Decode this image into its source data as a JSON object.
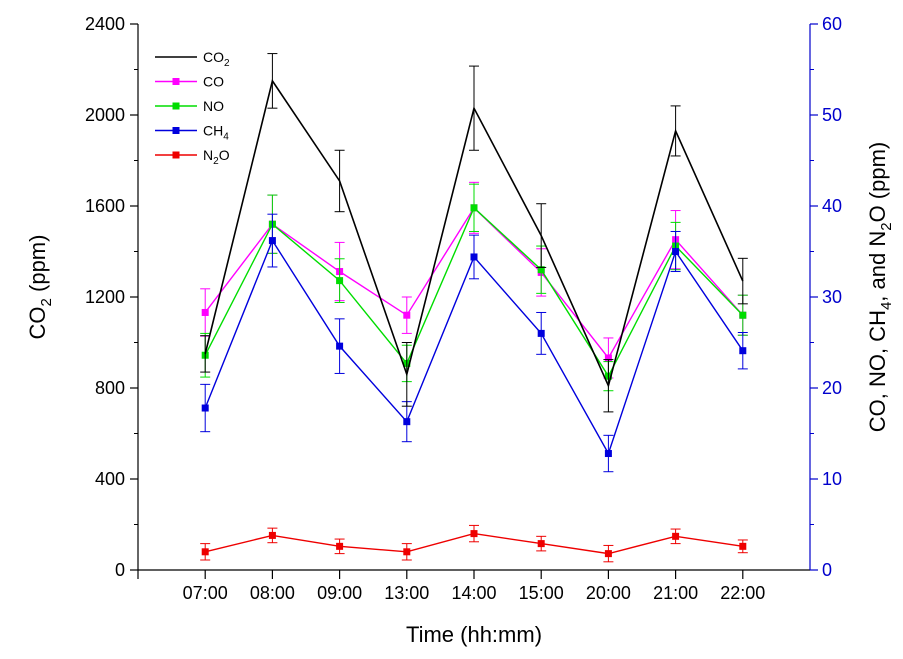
{
  "chart_data": {
    "type": "line",
    "categories": [
      "07:00",
      "08:00",
      "09:00",
      "13:00",
      "14:00",
      "15:00",
      "20:00",
      "21:00",
      "22:00"
    ],
    "xlabel": "Time (hh:mm)",
    "ylabel_left": {
      "main": "CO",
      "sub": "2",
      "rest": " (ppm)"
    },
    "ylabel_right": {
      "parts": [
        {
          "t": "CO, NO, CH",
          "sub": false
        },
        {
          "t": "4",
          "sub": true
        },
        {
          "t": ", and N",
          "sub": false
        },
        {
          "t": "2",
          "sub": true
        },
        {
          "t": "O (ppm)",
          "sub": false
        }
      ]
    },
    "ylim_left": [
      0,
      2400
    ],
    "yticks_left": [
      0,
      400,
      800,
      1200,
      1600,
      2000,
      2400
    ],
    "ylim_right": [
      0,
      60
    ],
    "yticks_right": [
      0,
      10,
      20,
      30,
      40,
      50,
      60
    ],
    "grid": false,
    "legend_position": "top-left",
    "series": [
      {
        "name": "CO",
        "name_sub": "2",
        "axis": "left",
        "color": "#000000",
        "marker": false,
        "values": [
          950,
          2150,
          1710,
          860,
          2030,
          1470,
          810,
          1930,
          1270
        ],
        "errors": [
          80,
          120,
          135,
          140,
          185,
          140,
          115,
          110,
          100
        ]
      },
      {
        "name": "CO",
        "name_sub": "",
        "axis": "right",
        "color": "#ff00ff",
        "marker": true,
        "values": [
          28.3,
          38.0,
          32.8,
          28.0,
          39.8,
          32.7,
          23.3,
          36.3,
          28.0
        ],
        "errors": [
          2.6,
          3.2,
          3.2,
          2.0,
          2.8,
          2.6,
          2.2,
          3.2,
          2.2
        ]
      },
      {
        "name": "NO",
        "name_sub": "",
        "axis": "right",
        "color": "#00dd00",
        "marker": true,
        "values": [
          23.6,
          38.0,
          31.8,
          22.7,
          39.8,
          33.0,
          21.3,
          35.6,
          28.0
        ],
        "errors": [
          2.4,
          3.2,
          2.4,
          2.0,
          2.6,
          2.6,
          1.6,
          2.6,
          2.2
        ]
      },
      {
        "name": "CH",
        "name_sub": "4",
        "axis": "right",
        "color": "#0000dd",
        "marker": true,
        "values": [
          17.8,
          36.2,
          24.6,
          16.3,
          34.4,
          26.0,
          12.8,
          35.0,
          24.1
        ],
        "errors": [
          2.6,
          2.9,
          3.0,
          2.2,
          2.4,
          2.3,
          2.0,
          2.2,
          2.0
        ]
      },
      {
        "name": "N",
        "name_sub": "2",
        "name_rest": "O",
        "axis": "right",
        "color": "#ee0000",
        "marker": true,
        "values": [
          2.0,
          3.8,
          2.6,
          2.0,
          4.0,
          2.9,
          1.8,
          3.7,
          2.6
        ],
        "errors": [
          0.9,
          0.8,
          0.8,
          0.9,
          0.9,
          0.8,
          0.9,
          0.8,
          0.7
        ]
      }
    ]
  }
}
